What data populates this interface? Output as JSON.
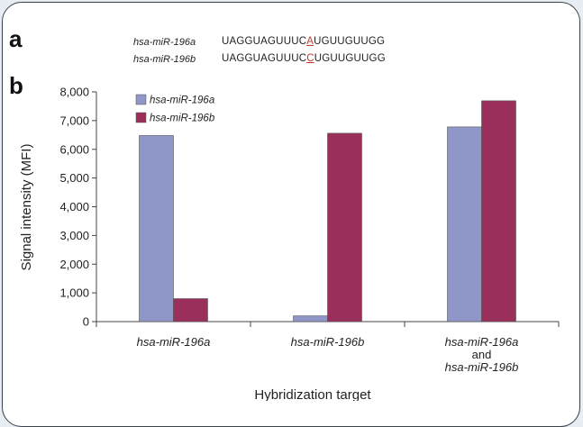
{
  "panels": {
    "a": "a",
    "b": "b"
  },
  "sequences": [
    {
      "name": "hsa-miR-196a",
      "prefix": "UAGGUAGUUUC",
      "mismatch": "A",
      "suffix": "UGUUGUUGG"
    },
    {
      "name": "hsa-miR-196b",
      "prefix": "UAGGUAGUUUC",
      "mismatch": "C",
      "suffix": "UGUUGUUGG"
    }
  ],
  "colors": {
    "series_a": "#8f97c8",
    "series_b": "#9b2f5c",
    "mismatch": "#c0392b",
    "axis": "#444444"
  },
  "chart_data": {
    "type": "bar",
    "categories": [
      [
        "hsa-miR-196a"
      ],
      [
        "hsa-miR-196b"
      ],
      [
        "hsa-miR-196a",
        "and",
        "hsa-miR-196b"
      ]
    ],
    "series": [
      {
        "name": "hsa-miR-196a",
        "values": [
          6480,
          200,
          6780
        ]
      },
      {
        "name": "hsa-miR-196b",
        "values": [
          800,
          6560,
          7690
        ]
      }
    ],
    "xlabel": "Hybridization target",
    "ylabel": "Signal intensity (MFI)",
    "ylim": [
      0,
      8000
    ],
    "yticks": [
      0,
      1000,
      2000,
      3000,
      4000,
      5000,
      6000,
      7000,
      8000
    ],
    "ytick_labels": [
      "0",
      "1,000",
      "2,000",
      "3,000",
      "4,000",
      "5,000",
      "6,000",
      "7,000",
      "8,000"
    ],
    "legend_position": "top-left",
    "grid": false
  }
}
